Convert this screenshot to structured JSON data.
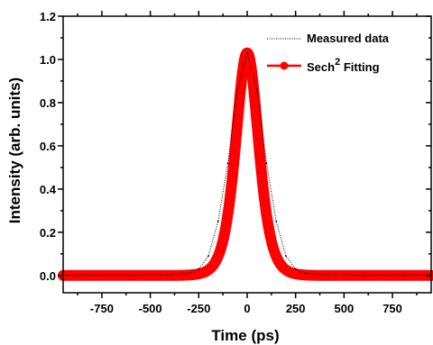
{
  "chart_data": {
    "type": "line",
    "title": "",
    "xlabel": "Time (ps)",
    "ylabel": "Intensity (arb. units)",
    "xlim": [
      -950,
      950
    ],
    "ylim": [
      -0.08,
      1.2
    ],
    "x_ticks": [
      -750,
      -500,
      -250,
      0,
      250,
      500,
      750
    ],
    "x_tick_labels": [
      "-750",
      "-500",
      "-250",
      "0",
      "250",
      "500",
      "750"
    ],
    "y_ticks": [
      0.0,
      0.2,
      0.4,
      0.6,
      0.8,
      1.0,
      1.2
    ],
    "y_tick_labels": [
      "0.0",
      "0.2",
      "0.4",
      "0.6",
      "0.8",
      "1.0",
      "1.2"
    ],
    "grid": false,
    "legend_position": "top-right",
    "series": [
      {
        "name": "Measured data",
        "style": "dotted",
        "color": "#000000",
        "x": [
          -950,
          -800,
          -600,
          -400,
          -300,
          -250,
          -200,
          -150,
          -100,
          -50,
          0,
          50,
          100,
          150,
          200,
          250,
          300,
          400,
          600,
          800,
          950
        ],
        "y": [
          0.0,
          0.0,
          0.0,
          0.003,
          0.01,
          0.03,
          0.09,
          0.25,
          0.52,
          0.86,
          1.03,
          0.86,
          0.52,
          0.25,
          0.09,
          0.03,
          0.01,
          0.003,
          0.0,
          0.0,
          0.0
        ]
      },
      {
        "name": "Sech² Fitting",
        "name_base": "Sech",
        "name_sup": "2",
        "name_suffix": " Fitting",
        "style": "solid-markers",
        "color": "#ff0000",
        "function": "sech^2",
        "peak": 1.03,
        "center": 0,
        "tau": 79,
        "baseline": 0.0
      }
    ]
  }
}
